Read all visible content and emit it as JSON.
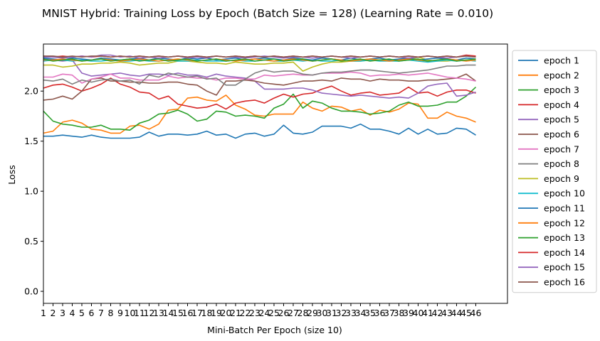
{
  "chart_data": {
    "type": "line",
    "title": "MNIST Hybrid: Training Loss by Epoch (Batch Size = 128) (Learning Rate = 0.010)",
    "xlabel": "Mini-Batch Per Epoch (size 10)",
    "ylabel": "Loss",
    "x": [
      1,
      2,
      3,
      4,
      5,
      6,
      7,
      8,
      9,
      10,
      11,
      12,
      13,
      14,
      15,
      16,
      17,
      18,
      19,
      20,
      21,
      22,
      23,
      24,
      25,
      26,
      27,
      28,
      29,
      30,
      31,
      32,
      33,
      34,
      35,
      36,
      37,
      38,
      39,
      40,
      41,
      42,
      43,
      44,
      45,
      46
    ],
    "xlim": [
      1,
      49.3
    ],
    "ylim": [
      -0.12,
      2.47
    ],
    "yticks": [
      0.0,
      0.5,
      1.0,
      1.5,
      2.0
    ],
    "ytick_labels": [
      "0.0",
      "0.5",
      "1.0",
      "1.5",
      "2.0"
    ],
    "grid": false,
    "legend_position": "outside-right",
    "series": [
      {
        "name": "epoch 1",
        "color": "#1f77b4",
        "values": [
          1.55,
          1.55,
          1.56,
          1.55,
          1.54,
          1.56,
          1.54,
          1.53,
          1.53,
          1.53,
          1.54,
          1.59,
          1.55,
          1.57,
          1.57,
          1.56,
          1.57,
          1.6,
          1.56,
          1.57,
          1.53,
          1.57,
          1.58,
          1.55,
          1.57,
          1.66,
          1.58,
          1.57,
          1.59,
          1.65,
          1.65,
          1.65,
          1.63,
          1.67,
          1.62,
          1.62,
          1.6,
          1.57,
          1.63,
          1.57,
          1.62,
          1.57,
          1.58,
          1.63,
          1.62,
          1.56
        ]
      },
      {
        "name": "epoch 2",
        "color": "#ff7f0e",
        "values": [
          1.58,
          1.6,
          1.69,
          1.71,
          1.68,
          1.62,
          1.61,
          1.58,
          1.58,
          1.65,
          1.66,
          1.62,
          1.67,
          1.81,
          1.82,
          1.93,
          1.94,
          1.91,
          1.9,
          1.96,
          1.86,
          1.82,
          1.76,
          1.75,
          1.77,
          1.77,
          1.77,
          1.89,
          1.83,
          1.8,
          1.85,
          1.84,
          1.8,
          1.82,
          1.76,
          1.81,
          1.79,
          1.82,
          1.88,
          1.87,
          1.73,
          1.73,
          1.79,
          1.75,
          1.73,
          1.69
        ]
      },
      {
        "name": "epoch 3",
        "color": "#2ca02c",
        "values": [
          1.8,
          1.7,
          1.67,
          1.66,
          1.64,
          1.64,
          1.66,
          1.62,
          1.62,
          1.61,
          1.68,
          1.71,
          1.77,
          1.78,
          1.81,
          1.77,
          1.7,
          1.72,
          1.8,
          1.79,
          1.75,
          1.76,
          1.75,
          1.73,
          1.83,
          1.87,
          1.97,
          1.83,
          1.9,
          1.88,
          1.83,
          1.8,
          1.8,
          1.79,
          1.77,
          1.78,
          1.8,
          1.86,
          1.89,
          1.85,
          1.85,
          1.86,
          1.89,
          1.89,
          1.95,
          2.04
        ]
      },
      {
        "name": "epoch 4",
        "color": "#d62728",
        "values": [
          2.03,
          2.06,
          2.07,
          2.04,
          2.0,
          2.03,
          2.07,
          2.13,
          2.07,
          2.04,
          1.99,
          1.98,
          1.92,
          1.95,
          1.87,
          1.85,
          1.83,
          1.84,
          1.87,
          1.82,
          1.88,
          1.9,
          1.91,
          1.88,
          1.93,
          1.97,
          1.94,
          1.97,
          1.98,
          2.02,
          2.05,
          2.0,
          1.96,
          1.98,
          1.99,
          1.96,
          1.97,
          1.98,
          2.04,
          1.98,
          1.99,
          1.95,
          1.99,
          2.01,
          2.01,
          1.98
        ]
      },
      {
        "name": "epoch 5",
        "color": "#9467bd",
        "values": [
          2.32,
          2.31,
          2.3,
          2.31,
          2.18,
          2.15,
          2.16,
          2.17,
          2.18,
          2.16,
          2.15,
          2.17,
          2.17,
          2.16,
          2.18,
          2.16,
          2.16,
          2.14,
          2.17,
          2.15,
          2.14,
          2.13,
          2.1,
          2.02,
          2.02,
          2.02,
          2.03,
          2.03,
          2.01,
          1.98,
          1.97,
          1.96,
          1.95,
          1.96,
          1.95,
          1.94,
          1.93,
          1.94,
          1.93,
          1.98,
          2.05,
          2.07,
          2.08,
          1.95,
          1.96,
          1.99
        ]
      },
      {
        "name": "epoch 6",
        "color": "#8c564b",
        "values": [
          1.91,
          1.92,
          1.95,
          1.92,
          2.0,
          2.12,
          2.13,
          2.1,
          2.1,
          2.09,
          2.09,
          2.08,
          2.08,
          2.09,
          2.09,
          2.07,
          2.06,
          2.0,
          1.96,
          2.1,
          2.1,
          2.11,
          2.1,
          2.08,
          2.07,
          2.06,
          2.08,
          2.1,
          2.1,
          2.11,
          2.1,
          2.13,
          2.12,
          2.12,
          2.1,
          2.12,
          2.11,
          2.11,
          2.1,
          2.1,
          2.11,
          2.11,
          2.12,
          2.13,
          2.17,
          2.1
        ]
      },
      {
        "name": "epoch 7",
        "color": "#e377c2",
        "values": [
          2.14,
          2.14,
          2.17,
          2.16,
          2.08,
          2.12,
          2.14,
          2.17,
          2.13,
          2.13,
          2.11,
          2.11,
          2.11,
          2.15,
          2.13,
          2.14,
          2.13,
          2.13,
          2.11,
          2.13,
          2.13,
          2.12,
          2.12,
          2.16,
          2.15,
          2.16,
          2.17,
          2.16,
          2.16,
          2.18,
          2.18,
          2.18,
          2.19,
          2.18,
          2.15,
          2.16,
          2.16,
          2.17,
          2.16,
          2.17,
          2.18,
          2.16,
          2.14,
          2.13,
          2.12,
          2.1
        ]
      },
      {
        "name": "epoch 8",
        "color": "#7f7f7f",
        "values": [
          2.11,
          2.1,
          2.12,
          2.07,
          2.11,
          2.09,
          2.11,
          2.12,
          2.1,
          2.11,
          2.07,
          2.16,
          2.14,
          2.18,
          2.16,
          2.14,
          2.15,
          2.12,
          2.13,
          2.06,
          2.06,
          2.12,
          2.18,
          2.21,
          2.19,
          2.2,
          2.2,
          2.17,
          2.16,
          2.18,
          2.19,
          2.19,
          2.2,
          2.21,
          2.21,
          2.2,
          2.19,
          2.18,
          2.19,
          2.2,
          2.21,
          2.23,
          2.25,
          2.25,
          2.26,
          2.26
        ]
      },
      {
        "name": "epoch 9",
        "color": "#bcbd22",
        "values": [
          2.26,
          2.26,
          2.24,
          2.25,
          2.27,
          2.27,
          2.28,
          2.28,
          2.29,
          2.28,
          2.26,
          2.27,
          2.28,
          2.28,
          2.3,
          2.3,
          2.29,
          2.28,
          2.28,
          2.27,
          2.29,
          2.28,
          2.27,
          2.27,
          2.28,
          2.28,
          2.29,
          2.2,
          2.24,
          2.27,
          2.29,
          2.29,
          2.3,
          2.3,
          2.31,
          2.31,
          2.31,
          2.31,
          2.31,
          2.34,
          2.31,
          2.3,
          2.3,
          2.31,
          2.31,
          2.3
        ]
      },
      {
        "name": "epoch 10",
        "color": "#17becf",
        "values": [
          2.3,
          2.31,
          2.31,
          2.3,
          2.31,
          2.3,
          2.3,
          2.31,
          2.3,
          2.3,
          2.31,
          2.3,
          2.3,
          2.31,
          2.3,
          2.3,
          2.31,
          2.3,
          2.3,
          2.3,
          2.31,
          2.3,
          2.3,
          2.31,
          2.3,
          2.3,
          2.31,
          2.3,
          2.31,
          2.3,
          2.3,
          2.31,
          2.3,
          2.3,
          2.31,
          2.3,
          2.3,
          2.3,
          2.31,
          2.3,
          2.29,
          2.3,
          2.31,
          2.3,
          2.31,
          2.3
        ]
      },
      {
        "name": "epoch 11",
        "color": "#1f77b4",
        "values": [
          2.33,
          2.32,
          2.31,
          2.33,
          2.32,
          2.31,
          2.33,
          2.32,
          2.31,
          2.32,
          2.33,
          2.31,
          2.33,
          2.32,
          2.31,
          2.33,
          2.32,
          2.33,
          2.31,
          2.32,
          2.33,
          2.31,
          2.32,
          2.33,
          2.32,
          2.31,
          2.33,
          2.32,
          2.31,
          2.33,
          2.32,
          2.31,
          2.33,
          2.31,
          2.32,
          2.33,
          2.31,
          2.32,
          2.33,
          2.31,
          2.32,
          2.33,
          2.32,
          2.31,
          2.33,
          2.32
        ]
      },
      {
        "name": "epoch 12",
        "color": "#ff7f0e",
        "values": [
          2.31,
          2.31,
          2.32,
          2.31,
          2.3,
          2.31,
          2.32,
          2.31,
          2.3,
          2.31,
          2.32,
          2.31,
          2.3,
          2.31,
          2.32,
          2.31,
          2.3,
          2.31,
          2.32,
          2.31,
          2.3,
          2.31,
          2.32,
          2.31,
          2.3,
          2.31,
          2.32,
          2.31,
          2.3,
          2.31,
          2.32,
          2.31,
          2.3,
          2.31,
          2.32,
          2.31,
          2.3,
          2.31,
          2.32,
          2.31,
          2.3,
          2.31,
          2.32,
          2.31,
          2.3,
          2.31
        ]
      },
      {
        "name": "epoch 13",
        "color": "#2ca02c",
        "values": [
          2.32,
          2.3,
          2.31,
          2.32,
          2.3,
          2.31,
          2.32,
          2.3,
          2.31,
          2.32,
          2.3,
          2.31,
          2.32,
          2.3,
          2.31,
          2.32,
          2.3,
          2.31,
          2.32,
          2.3,
          2.31,
          2.32,
          2.3,
          2.31,
          2.32,
          2.3,
          2.31,
          2.32,
          2.3,
          2.31,
          2.32,
          2.3,
          2.31,
          2.32,
          2.3,
          2.31,
          2.32,
          2.3,
          2.31,
          2.32,
          2.3,
          2.31,
          2.32,
          2.3,
          2.31,
          2.32
        ]
      },
      {
        "name": "epoch 14",
        "color": "#d62728",
        "values": [
          2.35,
          2.34,
          2.35,
          2.34,
          2.35,
          2.34,
          2.35,
          2.34,
          2.35,
          2.34,
          2.35,
          2.34,
          2.35,
          2.34,
          2.35,
          2.34,
          2.35,
          2.34,
          2.35,
          2.34,
          2.35,
          2.34,
          2.35,
          2.34,
          2.35,
          2.34,
          2.35,
          2.34,
          2.35,
          2.34,
          2.35,
          2.34,
          2.35,
          2.34,
          2.35,
          2.34,
          2.35,
          2.34,
          2.35,
          2.34,
          2.35,
          2.34,
          2.35,
          2.34,
          2.36,
          2.35
        ]
      },
      {
        "name": "epoch 15",
        "color": "#9467bd",
        "values": [
          2.34,
          2.34,
          2.33,
          2.34,
          2.35,
          2.34,
          2.36,
          2.36,
          2.34,
          2.35,
          2.33,
          2.34,
          2.33,
          2.34,
          2.35,
          2.33,
          2.34,
          2.33,
          2.35,
          2.34,
          2.34,
          2.33,
          2.34,
          2.35,
          2.34,
          2.33,
          2.34,
          2.34,
          2.33,
          2.34,
          2.35,
          2.34,
          2.33,
          2.34,
          2.35,
          2.34,
          2.35,
          2.34,
          2.33,
          2.34,
          2.35,
          2.34,
          2.33,
          2.34,
          2.35,
          2.34
        ]
      },
      {
        "name": "epoch 16",
        "color": "#8c564b",
        "values": [
          2.35,
          2.35,
          2.34,
          2.35,
          2.34,
          2.35,
          2.35,
          2.34,
          2.35,
          2.34,
          2.35,
          2.34,
          2.35,
          2.34,
          2.35,
          2.34,
          2.35,
          2.34,
          2.35,
          2.34,
          2.35,
          2.34,
          2.35,
          2.34,
          2.35,
          2.34,
          2.35,
          2.34,
          2.35,
          2.34,
          2.35,
          2.34,
          2.35,
          2.34,
          2.35,
          2.34,
          2.35,
          2.34,
          2.35,
          2.34,
          2.35,
          2.34,
          2.35,
          2.34,
          2.35,
          2.34
        ]
      }
    ]
  }
}
